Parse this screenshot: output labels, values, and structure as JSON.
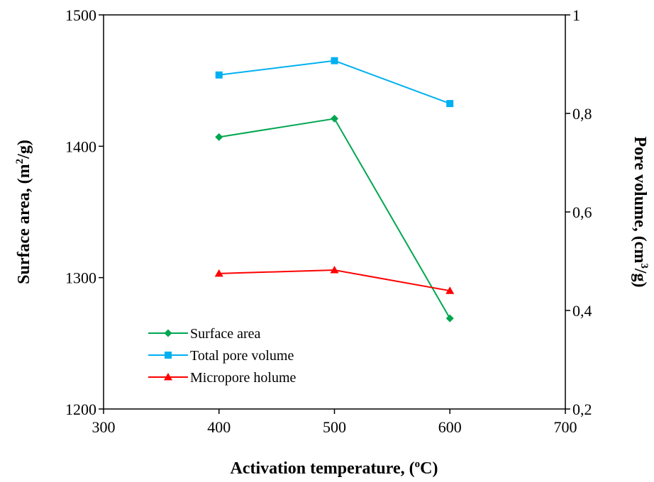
{
  "chart_data": {
    "type": "line",
    "x": [
      400,
      500,
      600
    ],
    "x_axis": {
      "title_main": "Activation temperature, (",
      "title_sup": "o",
      "title_end": "C)",
      "range": [
        300,
        700
      ],
      "ticks": [
        "300",
        "400",
        "500",
        "600",
        "700"
      ]
    },
    "y_left": {
      "title_main": "Surface area, (m",
      "title_sup": "2",
      "title_end": "/g)",
      "range": [
        1200,
        1500
      ],
      "ticks": [
        "1200",
        "1300",
        "1400",
        "1500"
      ]
    },
    "y_right": {
      "title_main": "Pore volume, (cm",
      "title_sup": "3",
      "title_end": "/g)",
      "range": [
        0.2,
        1.0
      ],
      "ticks": [
        "0,2",
        "0,4",
        "0,6",
        "0,8",
        "1"
      ]
    },
    "series": [
      {
        "name": "Surface area",
        "axis": "left",
        "marker": "diamond",
        "color": "#00A650",
        "values": [
          1407,
          1421,
          1269
        ]
      },
      {
        "name": "Total pore volume",
        "axis": "right",
        "marker": "square",
        "color": "#00B0F0",
        "values": [
          0.878,
          0.907,
          0.82
        ]
      },
      {
        "name": "Micropore holume",
        "axis": "right",
        "marker": "triangle",
        "color": "#FF0000",
        "values": [
          0.475,
          0.482,
          0.44
        ]
      }
    ],
    "grid": false,
    "legend_position": "bottom-left"
  }
}
